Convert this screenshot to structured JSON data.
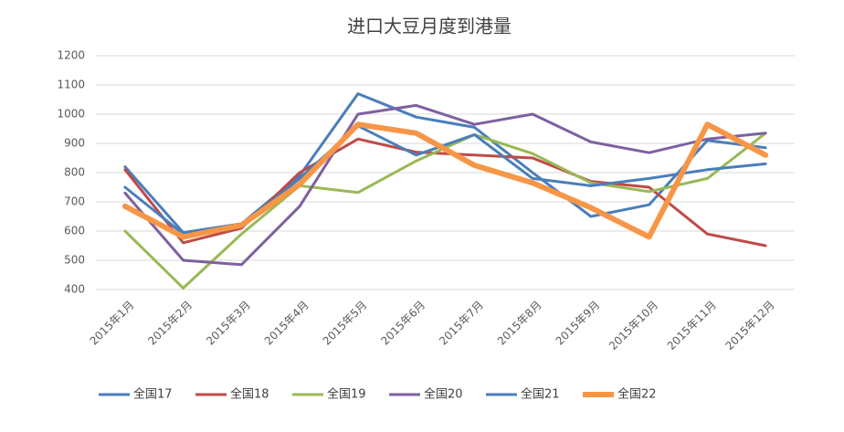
{
  "chart_data": {
    "type": "line",
    "title": "进口大豆月度到港量",
    "categories": [
      "2015年1月",
      "2015年2月",
      "2015年3月",
      "2015年4月",
      "2015年5月",
      "2015年6月",
      "2015年7月",
      "2015年8月",
      "2015年9月",
      "2015年10月",
      "2015年11月",
      "2015年12月"
    ],
    "series": [
      {
        "name": "全国17",
        "color": "#4a7ebb",
        "width": 3,
        "values": [
          820,
          595,
          625,
          790,
          1070,
          990,
          955,
          800,
          650,
          690,
          910,
          885
        ]
      },
      {
        "name": "全国18",
        "color": "#be4b48",
        "width": 3,
        "values": [
          810,
          560,
          610,
          800,
          915,
          870,
          860,
          850,
          770,
          750,
          590,
          550
        ]
      },
      {
        "name": "全国19",
        "color": "#98b954",
        "width": 3,
        "values": [
          600,
          405,
          590,
          755,
          732,
          840,
          930,
          865,
          765,
          735,
          780,
          935
        ]
      },
      {
        "name": "全国20",
        "color": "#7d60a0",
        "width": 3,
        "values": [
          730,
          500,
          485,
          685,
          1000,
          1030,
          965,
          1000,
          905,
          868,
          915,
          935
        ]
      },
      {
        "name": "全国21",
        "color": "#4a7ebb",
        "width": 3,
        "values": [
          750,
          590,
          620,
          780,
          960,
          860,
          930,
          780,
          755,
          780,
          810,
          830
        ]
      },
      {
        "name": "全国22",
        "color": "#f79646",
        "width": 6,
        "values": [
          685,
          580,
          620,
          760,
          965,
          935,
          825,
          765,
          680,
          580,
          965,
          860
        ]
      }
    ],
    "ylim": [
      400,
      1200
    ],
    "yticks": [
      400,
      500,
      600,
      700,
      800,
      900,
      1000,
      1100,
      1200
    ],
    "grid": true
  }
}
